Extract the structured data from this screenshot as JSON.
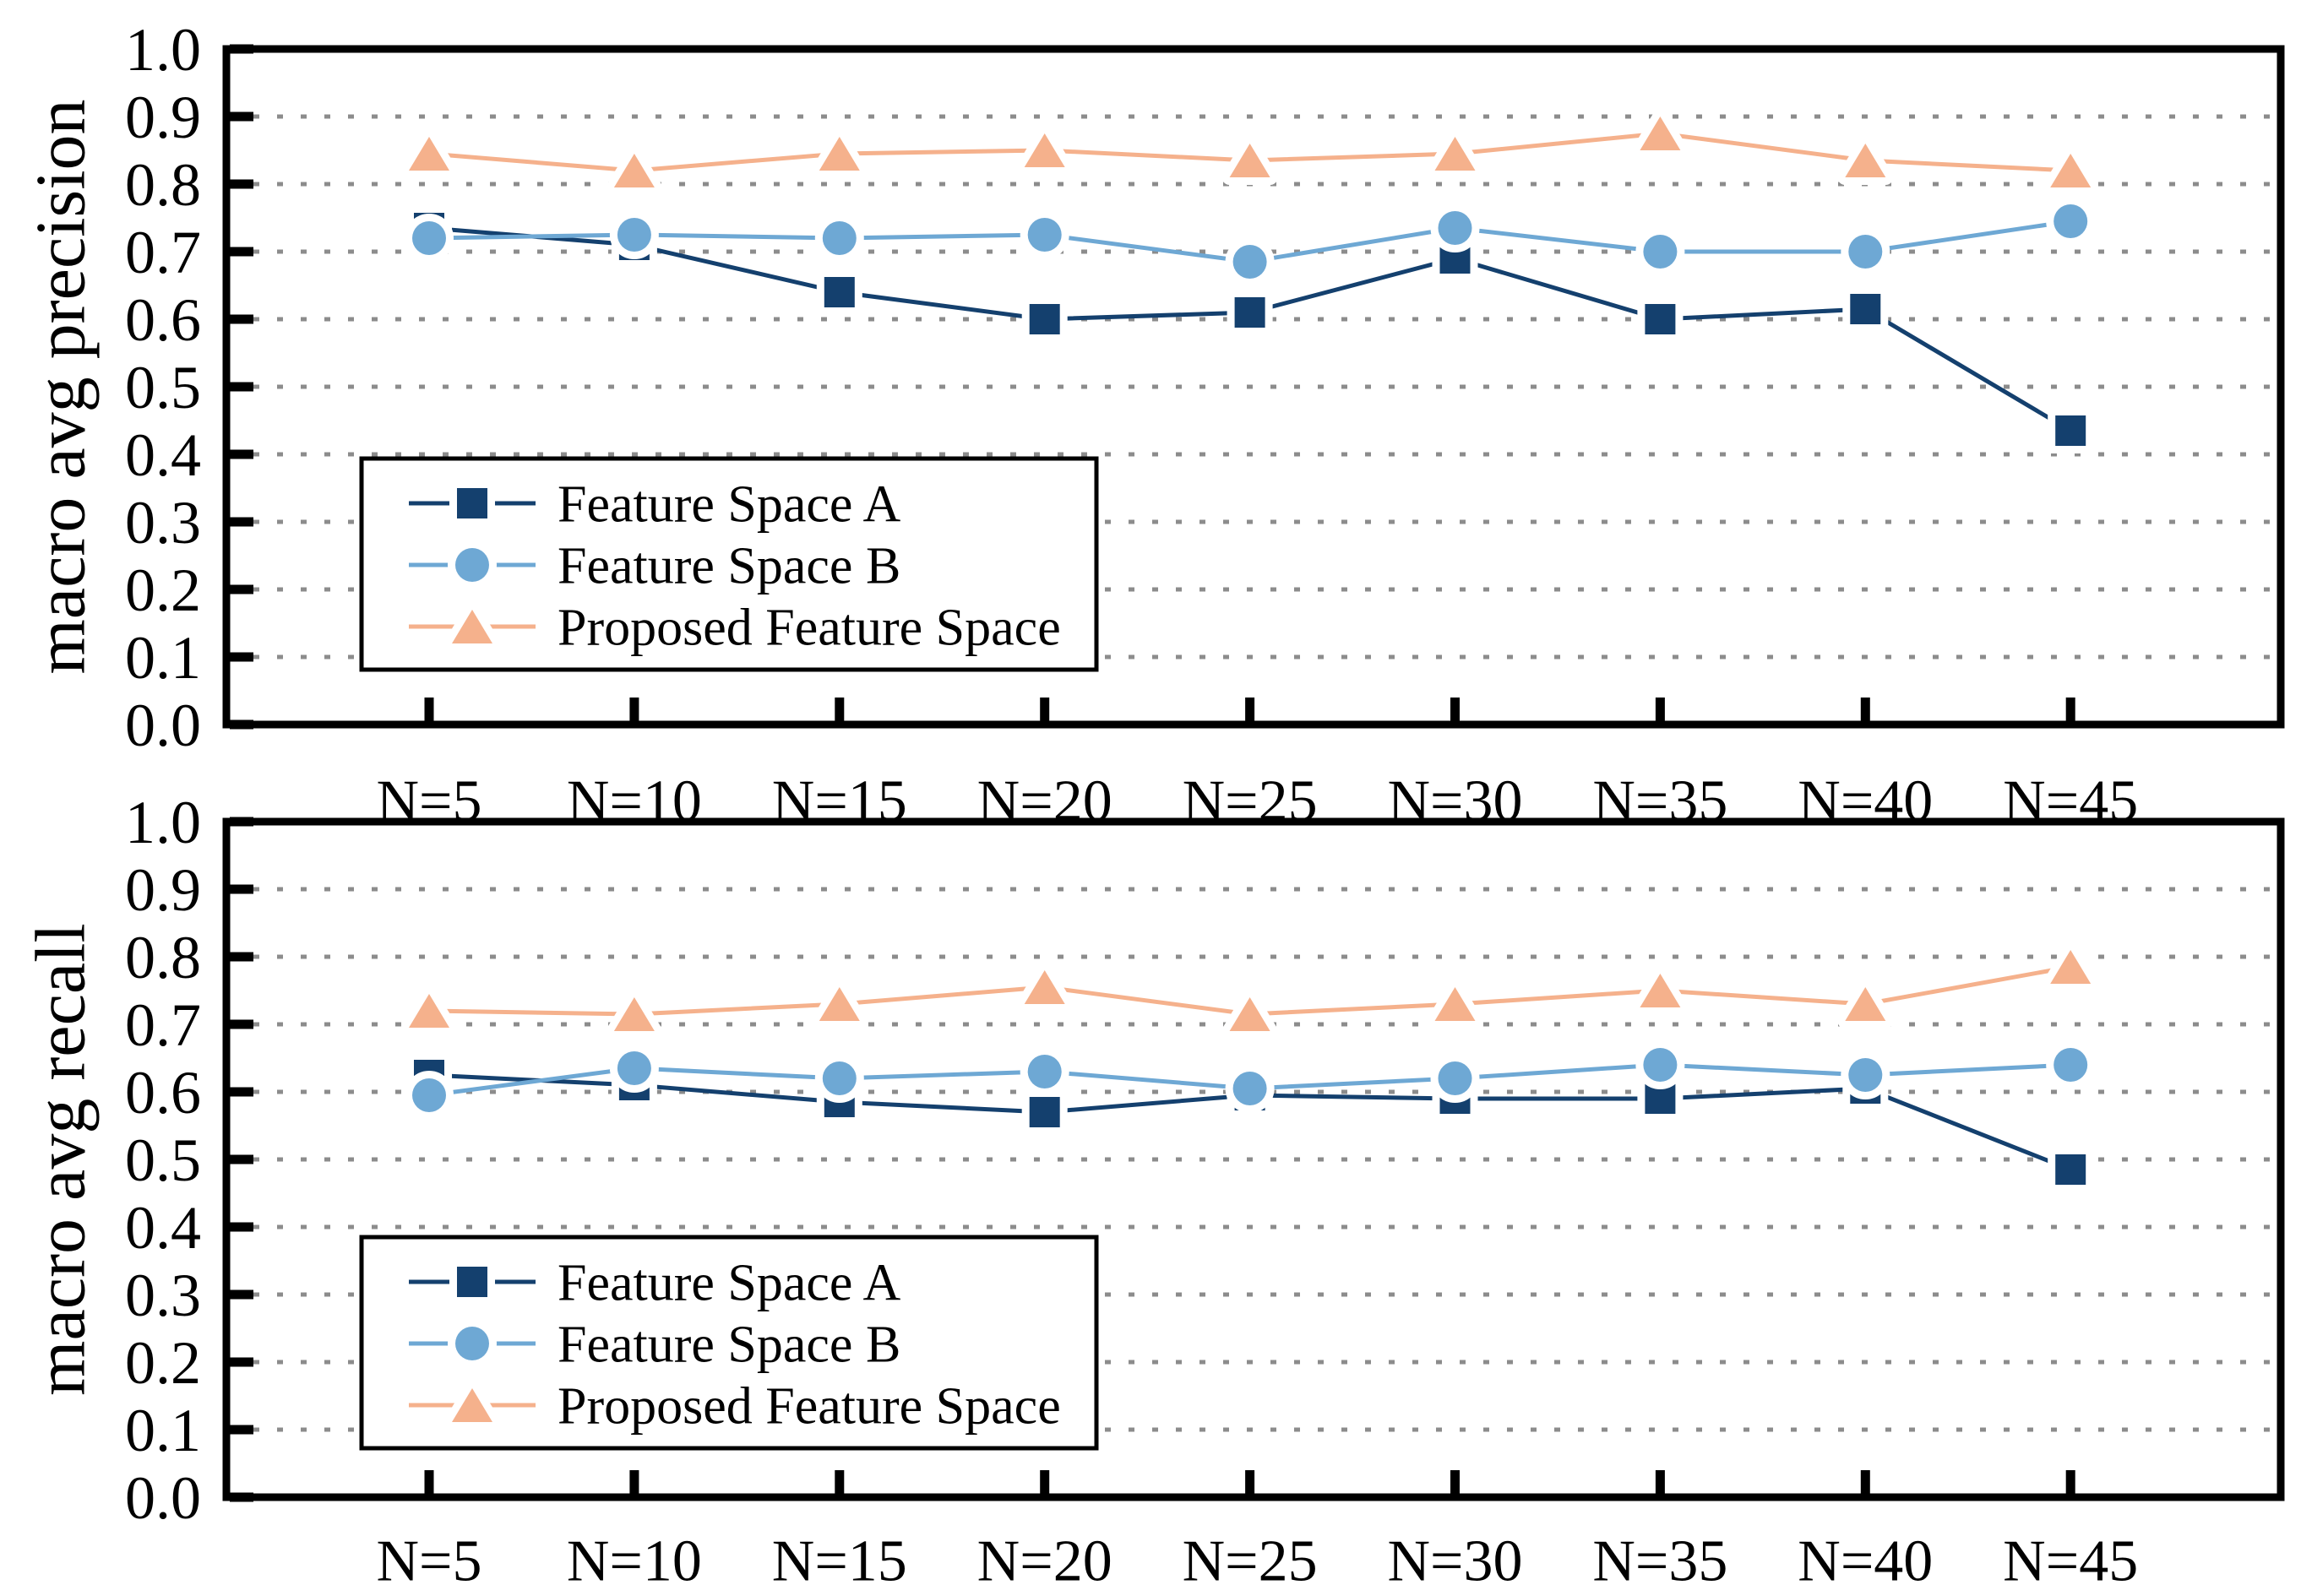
{
  "figure": {
    "background": "#ffffff"
  },
  "colors": {
    "series_a": "#14406E",
    "series_b": "#6EA8D4",
    "series_proposed": "#F5B18C",
    "grid": "#8C8C8C",
    "axis": "#000000",
    "legend_border": "#000000",
    "legend_bg": "#ffffff"
  },
  "legend": {
    "items": [
      {
        "label": "Feature Space A",
        "color_key": "series_a",
        "marker": "square"
      },
      {
        "label": "Feature Space B",
        "color_key": "series_b",
        "marker": "circle"
      },
      {
        "label": "Proposed Feature Space",
        "color_key": "series_proposed",
        "marker": "triangle"
      }
    ]
  },
  "chart_data": [
    {
      "type": "line",
      "panel": "top",
      "title": "",
      "xlabel": "",
      "ylabel": "macro avg precision",
      "categories": [
        "N=5",
        "N=10",
        "N=15",
        "N=20",
        "N=25",
        "N=30",
        "N=35",
        "N=40",
        "N=45"
      ],
      "ylim": [
        0.0,
        1.0
      ],
      "ytick_labels": [
        "0.0",
        "0.1",
        "0.2",
        "0.3",
        "0.4",
        "0.5",
        "0.6",
        "0.7",
        "0.8",
        "0.9",
        "1.0"
      ],
      "grid": "horizontal-dotted-0.1-to-0.9",
      "legend_position": "inside-lower-left",
      "series": [
        {
          "name": "Feature Space A",
          "marker": "square",
          "color_key": "series_a",
          "values": [
            0.735,
            0.71,
            0.64,
            0.6,
            0.61,
            0.69,
            0.6,
            0.615,
            0.435
          ]
        },
        {
          "name": "Feature Space B",
          "marker": "circle",
          "color_key": "series_b",
          "values": [
            0.72,
            0.725,
            0.72,
            0.725,
            0.685,
            0.735,
            0.7,
            0.7,
            0.745
          ]
        },
        {
          "name": "Proposed Feature Space",
          "marker": "triangle",
          "color_key": "series_proposed",
          "values": [
            0.845,
            0.82,
            0.845,
            0.85,
            0.835,
            0.845,
            0.875,
            0.835,
            0.82
          ]
        }
      ]
    },
    {
      "type": "line",
      "panel": "bottom",
      "title": "",
      "xlabel": "",
      "ylabel": "macro avg recall",
      "categories": [
        "N=5",
        "N=10",
        "N=15",
        "N=20",
        "N=25",
        "N=30",
        "N=35",
        "N=40",
        "N=45"
      ],
      "ylim": [
        0.0,
        1.0
      ],
      "ytick_labels": [
        "0.0",
        "0.1",
        "0.2",
        "0.3",
        "0.4",
        "0.5",
        "0.6",
        "0.7",
        "0.8",
        "0.9",
        "1.0"
      ],
      "grid": "horizontal-dotted-0.1-to-0.9",
      "legend_position": "inside-lower-left",
      "series": [
        {
          "name": "Feature Space A",
          "marker": "square",
          "color_key": "series_a",
          "values": [
            0.625,
            0.61,
            0.585,
            0.57,
            0.595,
            0.59,
            0.59,
            0.605,
            0.485
          ]
        },
        {
          "name": "Feature Space B",
          "marker": "circle",
          "color_key": "series_b",
          "values": [
            0.595,
            0.635,
            0.62,
            0.63,
            0.605,
            0.62,
            0.64,
            0.625,
            0.64
          ]
        },
        {
          "name": "Proposed Feature Space",
          "marker": "triangle",
          "color_key": "series_proposed",
          "values": [
            0.72,
            0.715,
            0.73,
            0.755,
            0.715,
            0.73,
            0.75,
            0.73,
            0.785
          ]
        }
      ]
    }
  ]
}
